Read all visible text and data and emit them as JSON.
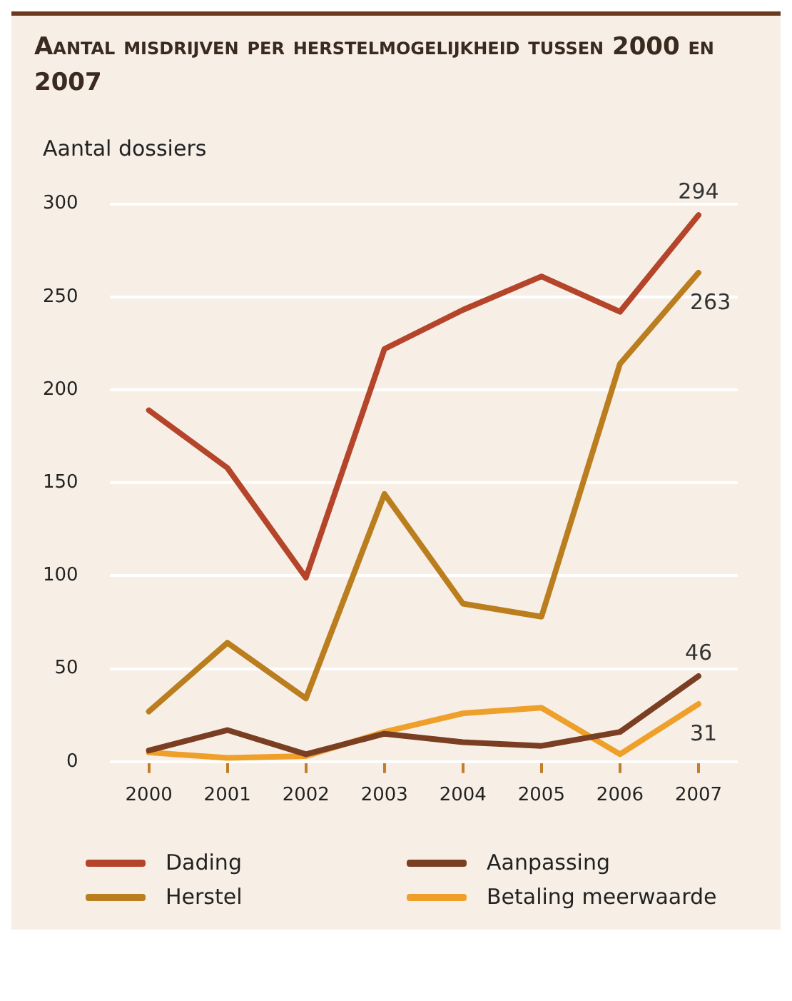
{
  "chart_data": {
    "type": "line",
    "title": "Aantal misdrijven per herstelmogelijkheid tussen 2000 en 2007",
    "ylabel": "Aantal dossiers",
    "categories": [
      "2000",
      "2001",
      "2002",
      "2003",
      "2004",
      "2005",
      "2006",
      "2007"
    ],
    "series": [
      {
        "name": "Dading",
        "color": "#b5452a",
        "values": [
          189,
          158,
          99,
          222,
          243,
          261,
          242,
          294
        ],
        "value_labels": [
          null,
          null,
          null,
          null,
          null,
          null,
          null,
          "294"
        ]
      },
      {
        "name": "Herstel",
        "color": "#bb7e1f",
        "values": [
          27,
          64,
          34,
          144,
          85,
          78,
          214,
          263
        ],
        "value_labels": [
          null,
          null,
          null,
          null,
          null,
          null,
          null,
          "263"
        ]
      },
      {
        "name": "Aanpassing",
        "color": "#7a3f22",
        "values": [
          6,
          17,
          4,
          15,
          10.5,
          8.5,
          16,
          46
        ],
        "value_labels": [
          null,
          null,
          null,
          null,
          null,
          null,
          null,
          "46"
        ]
      },
      {
        "name": "Betaling meerwaarde",
        "color": "#eea02a",
        "values": [
          5,
          2,
          3,
          16,
          26,
          29,
          4,
          31
        ],
        "value_labels": [
          null,
          null,
          null,
          null,
          null,
          null,
          null,
          "31"
        ]
      }
    ],
    "ylim": [
      0,
      300
    ],
    "yticks": [
      0,
      50,
      100,
      150,
      200,
      250,
      300
    ],
    "grid": "y",
    "legend": "bottom",
    "marker": "none",
    "line_style": "solid"
  }
}
